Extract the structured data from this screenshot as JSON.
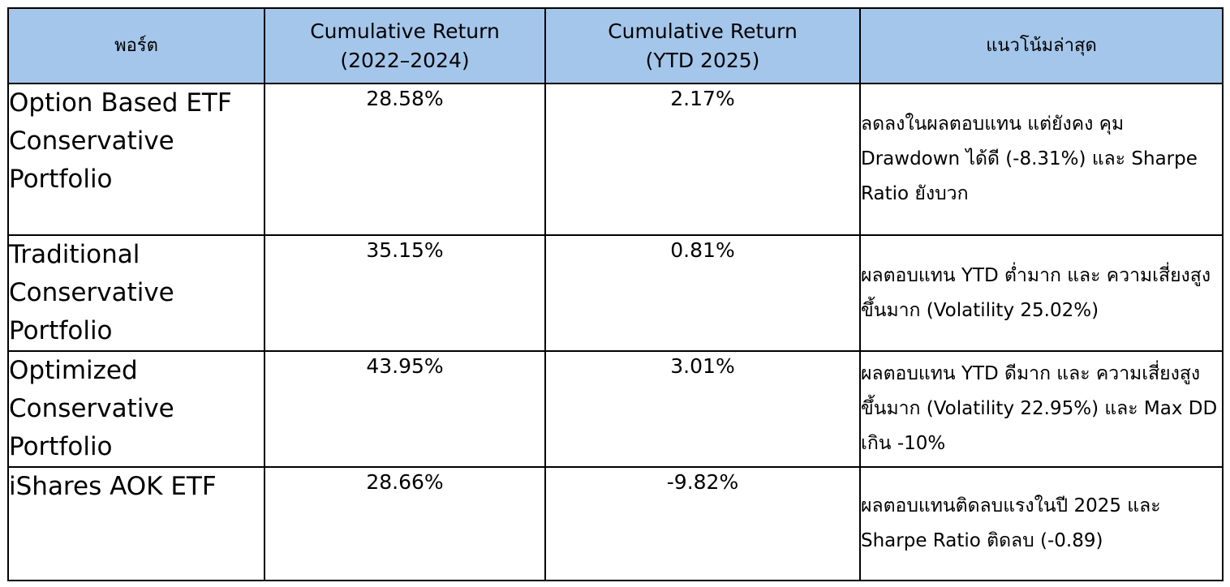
{
  "table": {
    "headers": [
      {
        "line1": "พอร์ต",
        "line2": ""
      },
      {
        "line1": "Cumulative Return",
        "line2": "(2022–2024)"
      },
      {
        "line1": "Cumulative Return",
        "line2": "(YTD 2025)"
      },
      {
        "line1": "แนวโน้มล่าสุด",
        "line2": ""
      }
    ],
    "rows": [
      {
        "name": "Option Based ETF Conservative Portfolio",
        "return_2022_2024": "28.58%",
        "return_ytd_2025": "2.17%",
        "trend": "ลดลงในผลตอบแทน แต่ยังคง คุม Drawdown ได้ดี (-8.31%) และ Sharpe Ratio ยังบวก"
      },
      {
        "name": "Traditional Conservative Portfolio",
        "return_2022_2024": "35.15%",
        "return_ytd_2025": "0.81%",
        "trend": "ผลตอบแทน YTD ต่ำมาก และ ความเสี่ยงสูงขึ้นมาก (Volatility 25.02%)"
      },
      {
        "name": "Optimized Conservative Portfolio",
        "return_2022_2024": "43.95%",
        "return_ytd_2025": "3.01%",
        "trend": "ผลตอบแทน YTD ดีมาก และ ความเสี่ยงสูงขึ้นมาก (Volatility 22.95%) และ Max DD เกิน -10%"
      },
      {
        "name": "iShares AOK ETF",
        "return_2022_2024": "28.66%",
        "return_ytd_2025": "-9.82%",
        "trend": "ผลตอบแทนติดลบแรงในปี 2025 และ Sharpe Ratio ติดลบ (-0.89)"
      }
    ]
  }
}
